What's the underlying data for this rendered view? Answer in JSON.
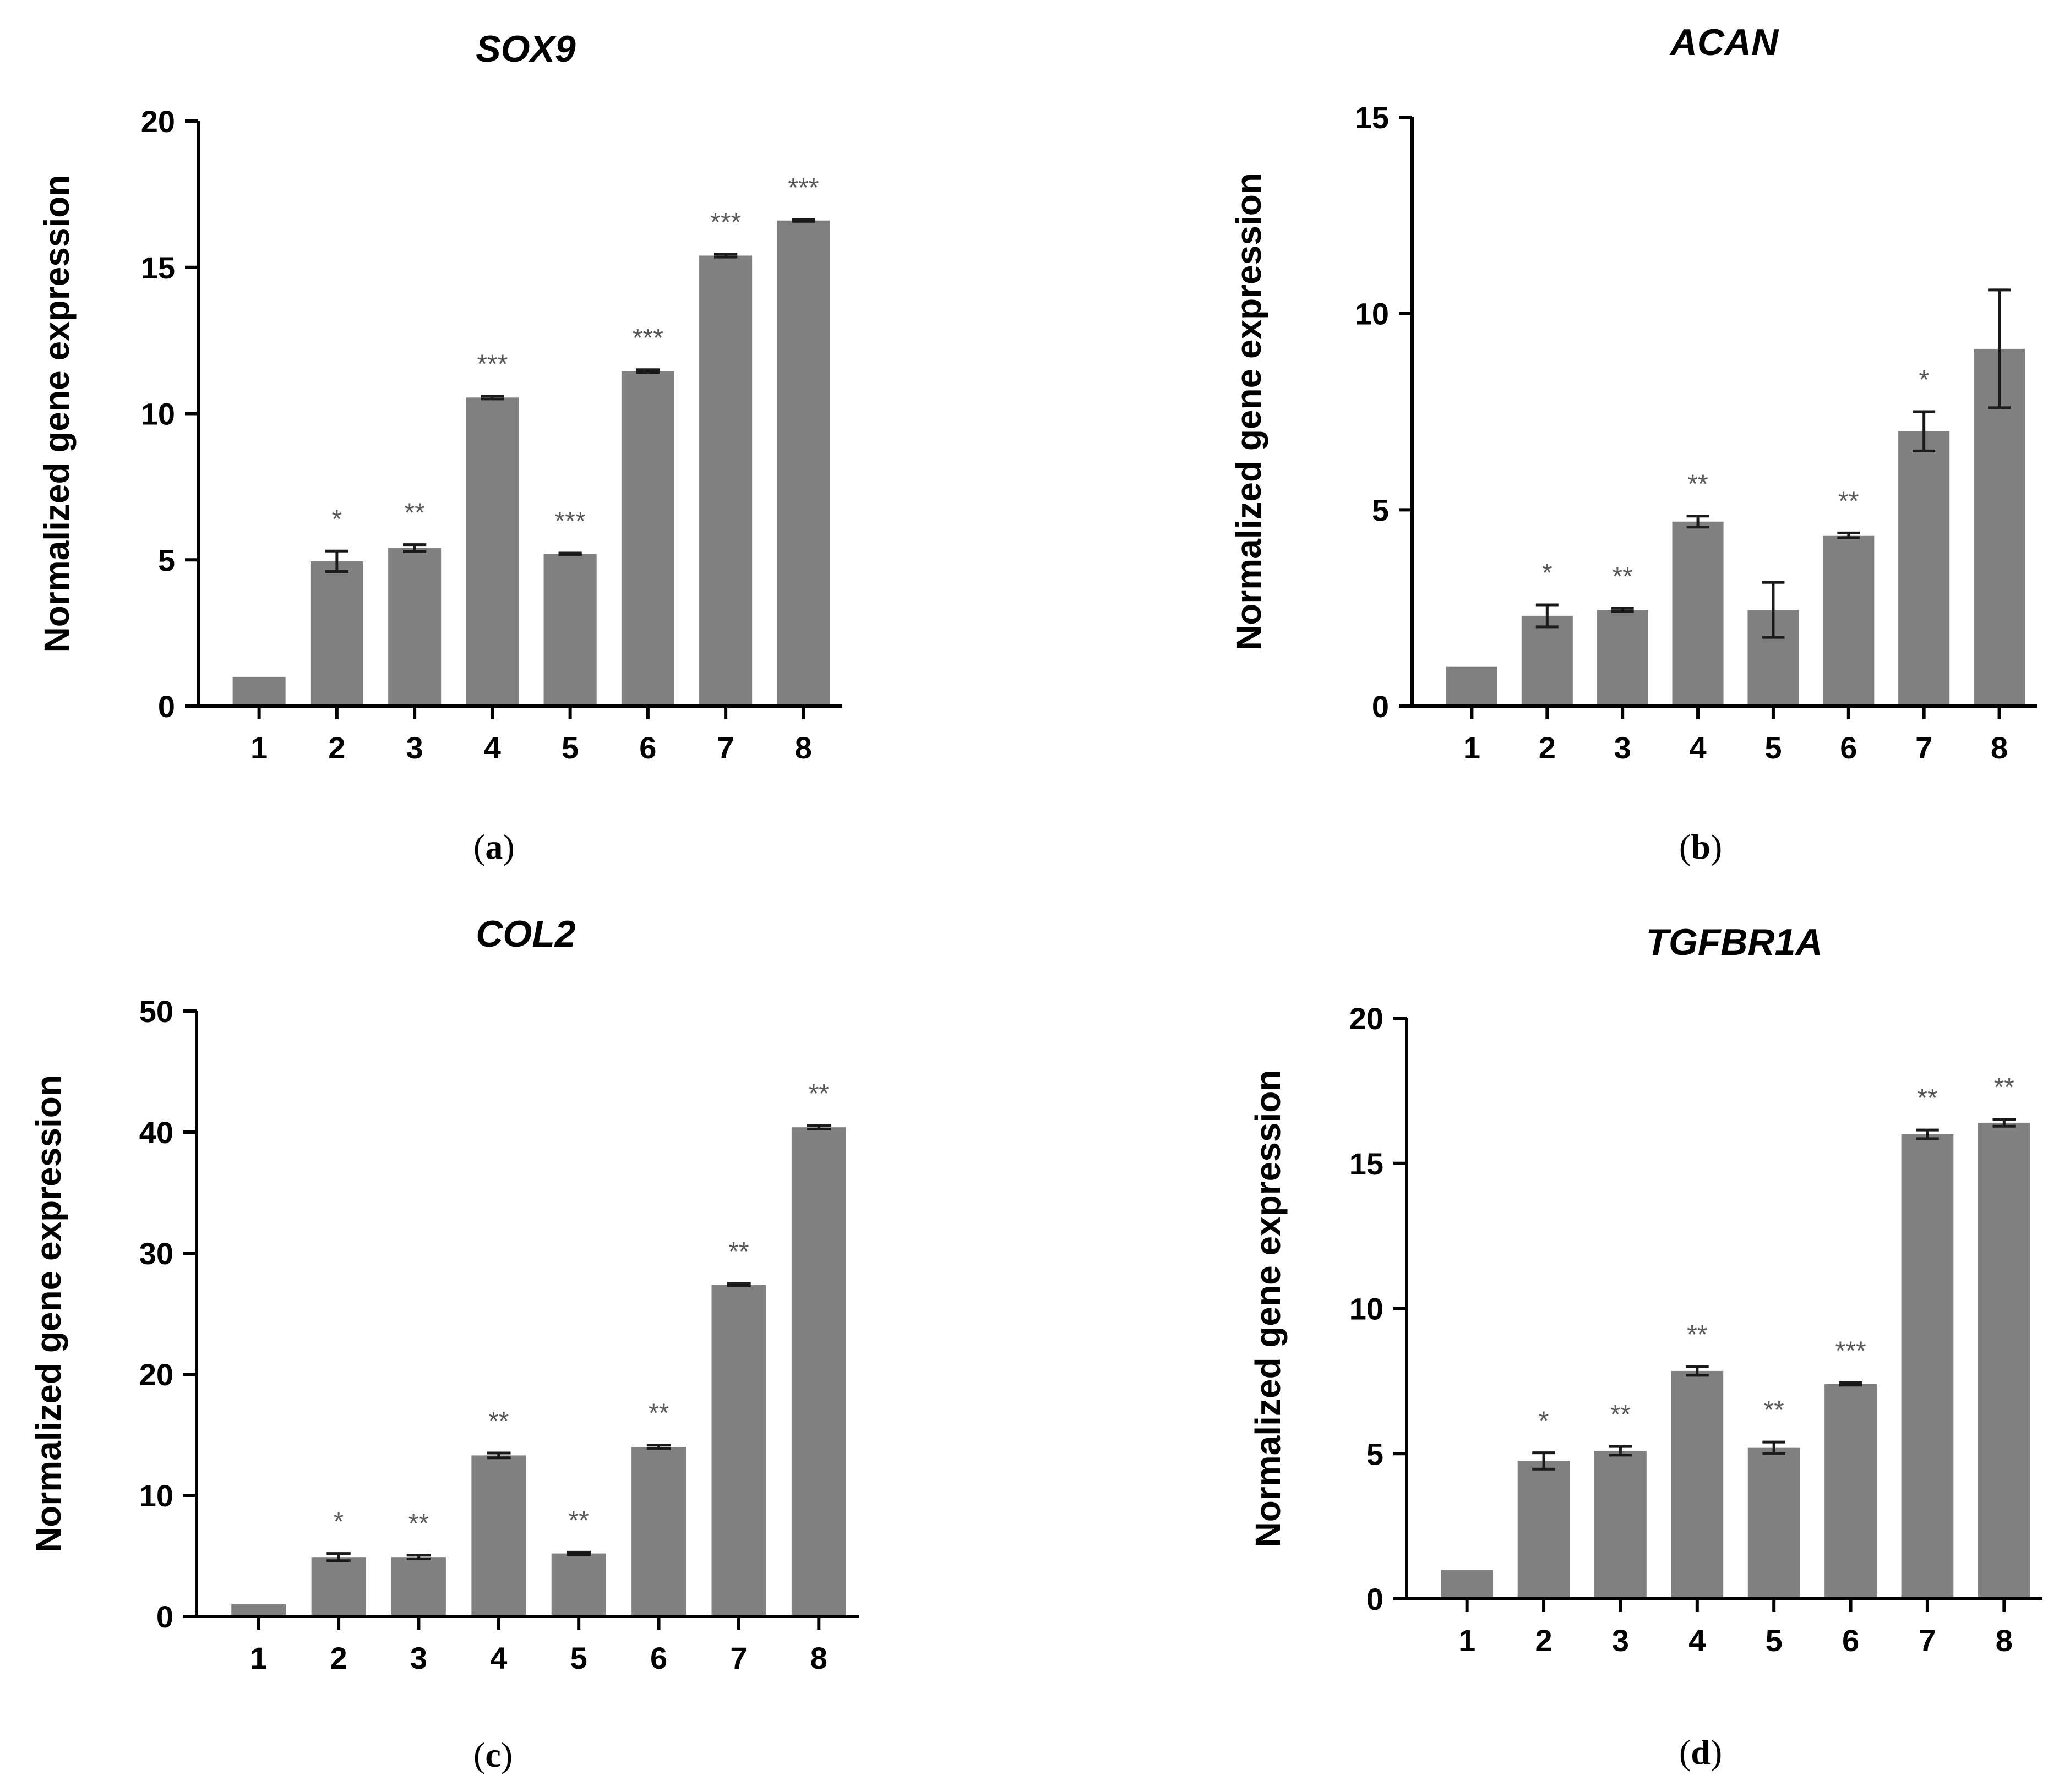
{
  "chart_data": [
    {
      "type": "bar",
      "panel": "a",
      "title": "SOX9",
      "xlabel": "",
      "ylabel": "Normalized gene expression",
      "categories": [
        "1",
        "2",
        "3",
        "4",
        "5",
        "6",
        "7",
        "8"
      ],
      "values": [
        1.0,
        4.95,
        5.4,
        10.55,
        5.2,
        11.45,
        15.4,
        16.6
      ],
      "errors": [
        0,
        0.35,
        0.12,
        0.05,
        0.03,
        0.05,
        0.05,
        0.03
      ],
      "significance": [
        "",
        "*",
        "**",
        "***",
        "***",
        "***",
        "***",
        "***"
      ],
      "ylim": [
        0,
        20
      ],
      "yticks": [
        0,
        5,
        10,
        15,
        20
      ]
    },
    {
      "type": "bar",
      "panel": "b",
      "title": "ACAN",
      "xlabel": "",
      "ylabel": "Normalized gene expression",
      "categories": [
        "1",
        "2",
        "3",
        "4",
        "5",
        "6",
        "7",
        "8"
      ],
      "values": [
        1.0,
        2.3,
        2.45,
        4.7,
        2.45,
        4.35,
        7.0,
        9.1
      ],
      "errors": [
        0,
        0.28,
        0.04,
        0.14,
        0.7,
        0.06,
        0.5,
        1.5
      ],
      "significance": [
        "",
        "*",
        "**",
        "**",
        "",
        "**",
        "*",
        ""
      ],
      "ylim": [
        0,
        15
      ],
      "yticks": [
        0,
        5,
        10,
        15
      ]
    },
    {
      "type": "bar",
      "panel": "c",
      "title": "COL2",
      "xlabel": "",
      "ylabel": "Normalized gene expression",
      "categories": [
        "1",
        "2",
        "3",
        "4",
        "5",
        "6",
        "7",
        "8"
      ],
      "values": [
        1.0,
        4.9,
        4.9,
        13.3,
        5.2,
        14.0,
        27.4,
        40.4
      ],
      "errors": [
        0,
        0.3,
        0.15,
        0.2,
        0.1,
        0.15,
        0.1,
        0.15
      ],
      "significance": [
        "",
        "*",
        "**",
        "**",
        "**",
        "**",
        "**",
        "**"
      ],
      "ylim": [
        0,
        50
      ],
      "yticks": [
        0,
        10,
        20,
        30,
        40,
        50
      ]
    },
    {
      "type": "bar",
      "panel": "d",
      "title": "TGFBR1A",
      "xlabel": "",
      "ylabel": "Normalized gene expression",
      "categories": [
        "1",
        "2",
        "3",
        "4",
        "5",
        "6",
        "7",
        "8"
      ],
      "values": [
        1.0,
        4.75,
        5.1,
        7.85,
        5.2,
        7.4,
        16.0,
        16.4
      ],
      "errors": [
        0,
        0.28,
        0.15,
        0.15,
        0.2,
        0.04,
        0.15,
        0.12
      ],
      "significance": [
        "",
        "*",
        "**",
        "**",
        "**",
        "***",
        "**",
        "**"
      ],
      "ylim": [
        0,
        20
      ],
      "yticks": [
        0,
        5,
        10,
        15,
        20
      ]
    }
  ]
}
